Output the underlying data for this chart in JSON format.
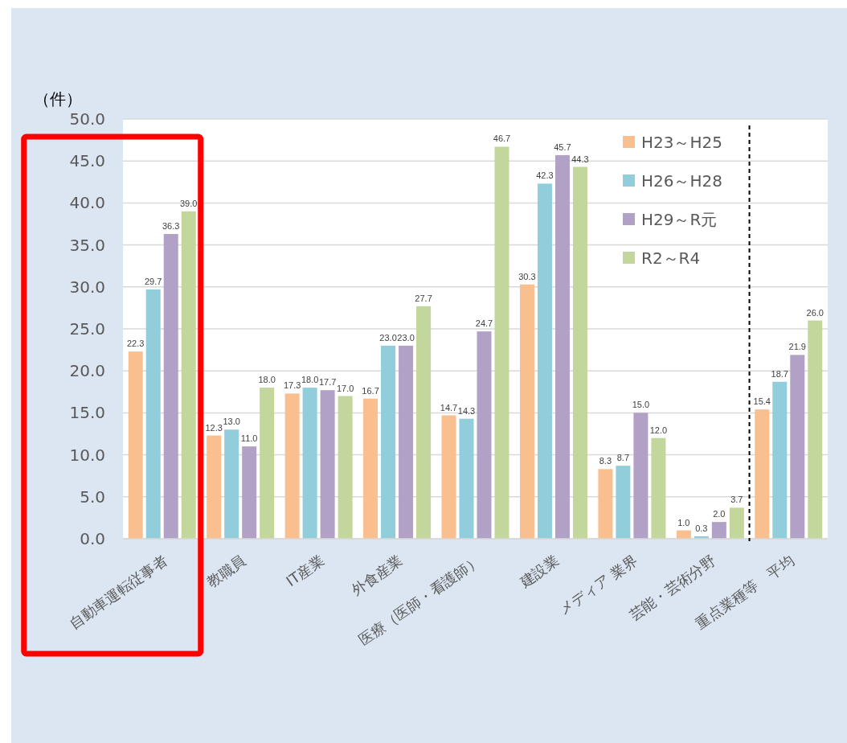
{
  "chart_data": {
    "type": "bar",
    "ylabel": "（件）",
    "categories": [
      "自動車運転従事者",
      "教職員",
      "IT産業",
      "外食産業",
      "医療（医師・看護師）",
      "建設業",
      "メディア 業界",
      "芸能・芸術分野",
      "重点業種等　平均"
    ],
    "series": [
      {
        "name": "H23～H25",
        "color": "#f9bf8f",
        "values": [
          22.3,
          12.3,
          17.3,
          16.7,
          14.7,
          30.3,
          8.3,
          1.0,
          15.4
        ],
        "value_labels": [
          "22.3",
          "12.3",
          "17.3",
          "16.7",
          "14.7",
          "30.3",
          "8.3",
          "1.0",
          "15.4"
        ]
      },
      {
        "name": "H26～H28",
        "color": "#92cddc",
        "values": [
          29.7,
          13.0,
          18.0,
          23.0,
          14.3,
          42.3,
          8.7,
          0.3,
          18.7
        ],
        "value_labels": [
          "29.7",
          "13.0",
          "18.0",
          "23.0",
          "14.3",
          "42.3",
          "8.7",
          "0.3",
          "18.7"
        ]
      },
      {
        "name": "H29～R元",
        "color": "#b2a1c7",
        "values": [
          36.3,
          11.0,
          17.7,
          23.0,
          24.7,
          45.7,
          15.0,
          2.0,
          21.9
        ],
        "value_labels": [
          "36.3",
          "11.0",
          "17.7",
          "23.0",
          "24.7",
          "45.7",
          "15.0",
          "2.0",
          "21.9"
        ]
      },
      {
        "name": "R2～R4",
        "color": "#c3d69b",
        "values": [
          39.0,
          18.0,
          17.0,
          27.7,
          46.7,
          44.3,
          12.0,
          3.7,
          26.0
        ],
        "value_labels": [
          "39.0",
          "18.0",
          "17.0",
          "27.7",
          "46.7",
          "44.3",
          "12.0",
          "3.7",
          "26.0"
        ]
      }
    ],
    "ylim": [
      0,
      50
    ],
    "yticks": [
      {
        "value": 0,
        "label": "0.0"
      },
      {
        "value": 5,
        "label": "5.0"
      },
      {
        "value": 10,
        "label": "10.0"
      },
      {
        "value": 15,
        "label": "15.0"
      },
      {
        "value": 20,
        "label": "20.0"
      },
      {
        "value": 25,
        "label": "25.0"
      },
      {
        "value": 30,
        "label": "30.0"
      },
      {
        "value": 35,
        "label": "35.0"
      },
      {
        "value": 40,
        "label": "40.0"
      },
      {
        "value": 45,
        "label": "45.0"
      },
      {
        "value": 50,
        "label": "50.0"
      }
    ],
    "grid": "y",
    "legend": "top right"
  }
}
